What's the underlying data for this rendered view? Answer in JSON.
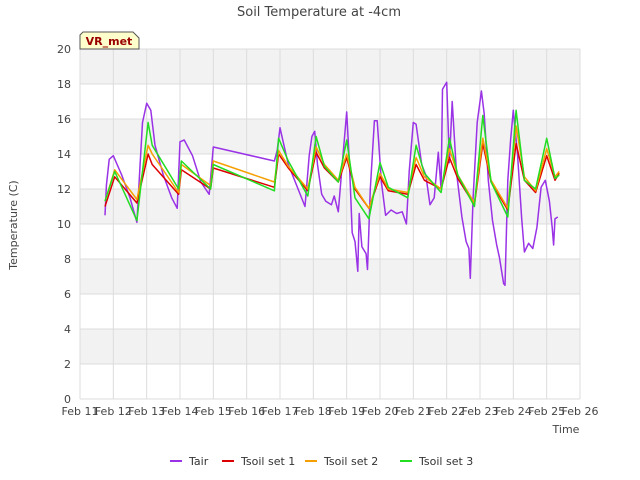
{
  "chart_data": {
    "type": "line",
    "title": "Soil Temperature at -4cm",
    "xlabel": "Time",
    "ylabel": "Temperature (C)",
    "badge": "VR_met",
    "x_ticks": [
      "Feb 11",
      "Feb 12",
      "Feb 13",
      "Feb 14",
      "Feb 15",
      "Feb 16",
      "Feb 17",
      "Feb 18",
      "Feb 19",
      "Feb 20",
      "Feb 21",
      "Feb 22",
      "Feb 23",
      "Feb 24",
      "Feb 25",
      "Feb 26"
    ],
    "y_ticks": [
      0,
      2,
      4,
      6,
      8,
      10,
      12,
      14,
      16,
      18,
      20
    ],
    "xlim": [
      "Feb 11",
      "Feb 26"
    ],
    "ylim": [
      0,
      20
    ],
    "grid": true,
    "legend_position": "bottom-center",
    "series": [
      {
        "name": "Tair",
        "color": "#9a32e6",
        "points": [
          [
            "Feb 11 18:00",
            10.5
          ],
          [
            "Feb 11 19:00",
            12.2
          ],
          [
            "Feb 11 21:00",
            13.7
          ],
          [
            "Feb 12 00:00",
            13.9
          ],
          [
            "Feb 12 06:00",
            12.8
          ],
          [
            "Feb 12 12:00",
            11.5
          ],
          [
            "Feb 12 17:00",
            10.1
          ],
          [
            "Feb 12 19:00",
            13.0
          ],
          [
            "Feb 12 21:00",
            15.8
          ],
          [
            "Feb 13 00:00",
            16.9
          ],
          [
            "Feb 13 03:00",
            16.5
          ],
          [
            "Feb 13 06:00",
            14.5
          ],
          [
            "Feb 13 12:00",
            12.8
          ],
          [
            "Feb 13 18:00",
            11.5
          ],
          [
            "Feb 13 22:00",
            10.9
          ],
          [
            "Feb 14 00:00",
            14.7
          ],
          [
            "Feb 14 03:00",
            14.8
          ],
          [
            "Feb 14 09:00",
            13.9
          ],
          [
            "Feb 14 15:00",
            12.4
          ],
          [
            "Feb 14 21:00",
            11.7
          ],
          [
            "Feb 15 00:00",
            14.4
          ],
          [
            "Feb 16 20:00",
            13.6
          ],
          [
            "Feb 16 22:00",
            14.2
          ],
          [
            "Feb 17 00:00",
            15.5
          ],
          [
            "Feb 17 06:00",
            13.4
          ],
          [
            "Feb 17 12:00",
            12.2
          ],
          [
            "Feb 17 18:00",
            11.0
          ],
          [
            "Feb 17 21:00",
            13.9
          ],
          [
            "Feb 17 23:00",
            15.0
          ],
          [
            "Feb 18 01:00",
            15.3
          ],
          [
            "Feb 18 03:00",
            13.4
          ],
          [
            "Feb 18 06:00",
            11.7
          ],
          [
            "Feb 18 09:00",
            11.3
          ],
          [
            "Feb 18 13:00",
            11.1
          ],
          [
            "Feb 18 15:00",
            11.6
          ],
          [
            "Feb 18 18:00",
            10.7
          ],
          [
            "Feb 18 21:00",
            13.6
          ],
          [
            "Feb 19 00:00",
            16.4
          ],
          [
            "Feb 19 02:00",
            13.5
          ],
          [
            "Feb 19 04:00",
            9.5
          ],
          [
            "Feb 19 06:00",
            9.0
          ],
          [
            "Feb 19 08:00",
            7.3
          ],
          [
            "Feb 19 09:00",
            10.6
          ],
          [
            "Feb 19 11:00",
            8.7
          ],
          [
            "Feb 19 14:00",
            8.3
          ],
          [
            "Feb 19 15:00",
            7.4
          ],
          [
            "Feb 19 17:00",
            12.0
          ],
          [
            "Feb 19 20:00",
            15.9
          ],
          [
            "Feb 19 22:00",
            15.9
          ],
          [
            "Feb 20 01:00",
            12.4
          ],
          [
            "Feb 20 04:00",
            10.5
          ],
          [
            "Feb 20 08:00",
            10.8
          ],
          [
            "Feb 20 12:00",
            10.6
          ],
          [
            "Feb 20 16:00",
            10.7
          ],
          [
            "Feb 20 19:00",
            10.0
          ],
          [
            "Feb 20 21:00",
            13.0
          ],
          [
            "Feb 21 00:00",
            15.8
          ],
          [
            "Feb 21 02:00",
            15.7
          ],
          [
            "Feb 21 06:00",
            13.4
          ],
          [
            "Feb 21 09:00",
            12.8
          ],
          [
            "Feb 21 12:00",
            11.1
          ],
          [
            "Feb 21 15:00",
            11.5
          ],
          [
            "Feb 21 18:00",
            14.1
          ],
          [
            "Feb 21 20:00",
            12.0
          ],
          [
            "Feb 21 21:00",
            17.7
          ],
          [
            "Feb 22 00:00",
            18.1
          ],
          [
            "Feb 22 02:00",
            13.5
          ],
          [
            "Feb 22 04:00",
            17.0
          ],
          [
            "Feb 22 07:00",
            13.0
          ],
          [
            "Feb 22 11:00",
            10.4
          ],
          [
            "Feb 22 14:00",
            9.0
          ],
          [
            "Feb 22 16:00",
            8.6
          ],
          [
            "Feb 22 17:00",
            6.9
          ],
          [
            "Feb 22 19:00",
            11.5
          ],
          [
            "Feb 22 22:00",
            15.8
          ],
          [
            "Feb 23 01:00",
            17.6
          ],
          [
            "Feb 23 03:00",
            16.3
          ],
          [
            "Feb 23 06:00",
            12.5
          ],
          [
            "Feb 23 09:00",
            10.2
          ],
          [
            "Feb 23 12:00",
            8.8
          ],
          [
            "Feb 23 14:00",
            8.1
          ],
          [
            "Feb 23 15:00",
            7.6
          ],
          [
            "Feb 23 17:00",
            6.6
          ],
          [
            "Feb 23 18:00",
            6.5
          ],
          [
            "Feb 23 20:00",
            12.5
          ],
          [
            "Feb 23 22:00",
            14.8
          ],
          [
            "Feb 24 00:00",
            16.5
          ],
          [
            "Feb 24 03:00",
            14.0
          ],
          [
            "Feb 24 06:00",
            10.3
          ],
          [
            "Feb 24 08:00",
            8.4
          ],
          [
            "Feb 24 11:00",
            8.9
          ],
          [
            "Feb 24 14:00",
            8.6
          ],
          [
            "Feb 24 17:00",
            9.8
          ],
          [
            "Feb 24 20:00",
            12.1
          ],
          [
            "Feb 24 23:00",
            12.5
          ],
          [
            "Feb 25 02:00",
            11.3
          ],
          [
            "Feb 25 04:00",
            9.8
          ],
          [
            "Feb 25 05:00",
            8.8
          ],
          [
            "Feb 25 06:00",
            10.3
          ],
          [
            "Feb 25 08:00",
            10.4
          ]
        ]
      },
      {
        "name": "Tsoil set 1",
        "color": "#dd0000",
        "points": [
          [
            "Feb 11 18:00",
            11.0
          ],
          [
            "Feb 12 01:00",
            12.7
          ],
          [
            "Feb 12 17:00",
            11.2
          ],
          [
            "Feb 13 01:00",
            14.0
          ],
          [
            "Feb 13 04:00",
            13.4
          ],
          [
            "Feb 13 23:00",
            11.7
          ],
          [
            "Feb 14 01:00",
            13.1
          ],
          [
            "Feb 14 22:00",
            12.0
          ],
          [
            "Feb 15 00:00",
            13.2
          ],
          [
            "Feb 16 20:00",
            12.1
          ],
          [
            "Feb 16 23:00",
            14.0
          ],
          [
            "Feb 17 06:00",
            13.2
          ],
          [
            "Feb 17 20:00",
            11.9
          ],
          [
            "Feb 18 02:00",
            14.1
          ],
          [
            "Feb 18 08:00",
            13.2
          ],
          [
            "Feb 18 18:00",
            12.4
          ],
          [
            "Feb 19 00:00",
            13.8
          ],
          [
            "Feb 19 06:00",
            12.0
          ],
          [
            "Feb 19 16:00",
            10.9
          ],
          [
            "Feb 20 00:00",
            12.7
          ],
          [
            "Feb 20 06:00",
            11.9
          ],
          [
            "Feb 20 20:00",
            11.7
          ],
          [
            "Feb 21 02:00",
            13.4
          ],
          [
            "Feb 21 08:00",
            12.5
          ],
          [
            "Feb 21 20:00",
            12.0
          ],
          [
            "Feb 22 02:00",
            13.8
          ],
          [
            "Feb 22 08:00",
            12.6
          ],
          [
            "Feb 22 20:00",
            11.1
          ],
          [
            "Feb 23 02:00",
            14.6
          ],
          [
            "Feb 23 08:00",
            12.4
          ],
          [
            "Feb 23 20:00",
            10.8
          ],
          [
            "Feb 24 02:00",
            14.6
          ],
          [
            "Feb 24 08:00",
            12.5
          ],
          [
            "Feb 24 16:00",
            11.8
          ],
          [
            "Feb 25 00:00",
            13.9
          ],
          [
            "Feb 25 06:00",
            12.5
          ],
          [
            "Feb 25 09:00",
            12.9
          ]
        ]
      },
      {
        "name": "Tsoil set 2",
        "color": "#f5a000",
        "points": [
          [
            "Feb 11 18:00",
            11.3
          ],
          [
            "Feb 12 01:00",
            13.1
          ],
          [
            "Feb 12 17:00",
            11.4
          ],
          [
            "Feb 13 01:00",
            14.5
          ],
          [
            "Feb 13 04:00",
            14.0
          ],
          [
            "Feb 13 23:00",
            11.8
          ],
          [
            "Feb 14 01:00",
            13.4
          ],
          [
            "Feb 14 22:00",
            12.2
          ],
          [
            "Feb 15 00:00",
            13.6
          ],
          [
            "Feb 16 20:00",
            12.4
          ],
          [
            "Feb 16 23:00",
            14.2
          ],
          [
            "Feb 17 06:00",
            13.3
          ],
          [
            "Feb 17 20:00",
            12.0
          ],
          [
            "Feb 18 02:00",
            14.4
          ],
          [
            "Feb 18 08:00",
            13.4
          ],
          [
            "Feb 18 18:00",
            12.5
          ],
          [
            "Feb 19 00:00",
            14.0
          ],
          [
            "Feb 19 06:00",
            12.1
          ],
          [
            "Feb 19 16:00",
            10.9
          ],
          [
            "Feb 20 00:00",
            12.9
          ],
          [
            "Feb 20 06:00",
            12.0
          ],
          [
            "Feb 20 20:00",
            11.8
          ],
          [
            "Feb 21 02:00",
            13.8
          ],
          [
            "Feb 21 08:00",
            12.7
          ],
          [
            "Feb 21 20:00",
            12.0
          ],
          [
            "Feb 22 02:00",
            14.3
          ],
          [
            "Feb 22 08:00",
            12.8
          ],
          [
            "Feb 22 20:00",
            11.2
          ],
          [
            "Feb 23 02:00",
            14.9
          ],
          [
            "Feb 23 08:00",
            12.5
          ],
          [
            "Feb 23 20:00",
            10.9
          ],
          [
            "Feb 24 02:00",
            15.6
          ],
          [
            "Feb 24 08:00",
            12.7
          ],
          [
            "Feb 24 16:00",
            11.9
          ],
          [
            "Feb 25 00:00",
            14.3
          ],
          [
            "Feb 25 06:00",
            12.7
          ],
          [
            "Feb 25 09:00",
            13.0
          ]
        ]
      },
      {
        "name": "Tsoil set 3",
        "color": "#22dd22",
        "points": [
          [
            "Feb 11 18:00",
            11.3
          ],
          [
            "Feb 12 01:00",
            13.0
          ],
          [
            "Feb 12 17:00",
            10.2
          ],
          [
            "Feb 13 01:00",
            15.8
          ],
          [
            "Feb 13 04:00",
            14.5
          ],
          [
            "Feb 13 23:00",
            12.0
          ],
          [
            "Feb 14 01:00",
            13.6
          ],
          [
            "Feb 14 22:00",
            12.0
          ],
          [
            "Feb 15 00:00",
            13.4
          ],
          [
            "Feb 16 20:00",
            11.9
          ],
          [
            "Feb 16 23:00",
            14.9
          ],
          [
            "Feb 17 06:00",
            13.6
          ],
          [
            "Feb 17 20:00",
            11.6
          ],
          [
            "Feb 18 02:00",
            15.0
          ],
          [
            "Feb 18 08:00",
            13.3
          ],
          [
            "Feb 18 18:00",
            12.4
          ],
          [
            "Feb 19 00:00",
            14.8
          ],
          [
            "Feb 19 06:00",
            11.5
          ],
          [
            "Feb 19 16:00",
            10.3
          ],
          [
            "Feb 20 00:00",
            13.5
          ],
          [
            "Feb 20 06:00",
            12.1
          ],
          [
            "Feb 20 20:00",
            11.5
          ],
          [
            "Feb 21 02:00",
            14.5
          ],
          [
            "Feb 21 08:00",
            12.9
          ],
          [
            "Feb 21 20:00",
            11.8
          ],
          [
            "Feb 22 02:00",
            14.9
          ],
          [
            "Feb 22 08:00",
            12.8
          ],
          [
            "Feb 22 20:00",
            11.0
          ],
          [
            "Feb 23 02:00",
            16.2
          ],
          [
            "Feb 23 08:00",
            12.4
          ],
          [
            "Feb 23 20:00",
            10.4
          ],
          [
            "Feb 24 02:00",
            16.5
          ],
          [
            "Feb 24 08:00",
            12.5
          ],
          [
            "Feb 24 16:00",
            12.0
          ],
          [
            "Feb 25 00:00",
            14.9
          ],
          [
            "Feb 25 06:00",
            12.6
          ],
          [
            "Feb 25 09:00",
            12.8
          ]
        ]
      }
    ]
  }
}
